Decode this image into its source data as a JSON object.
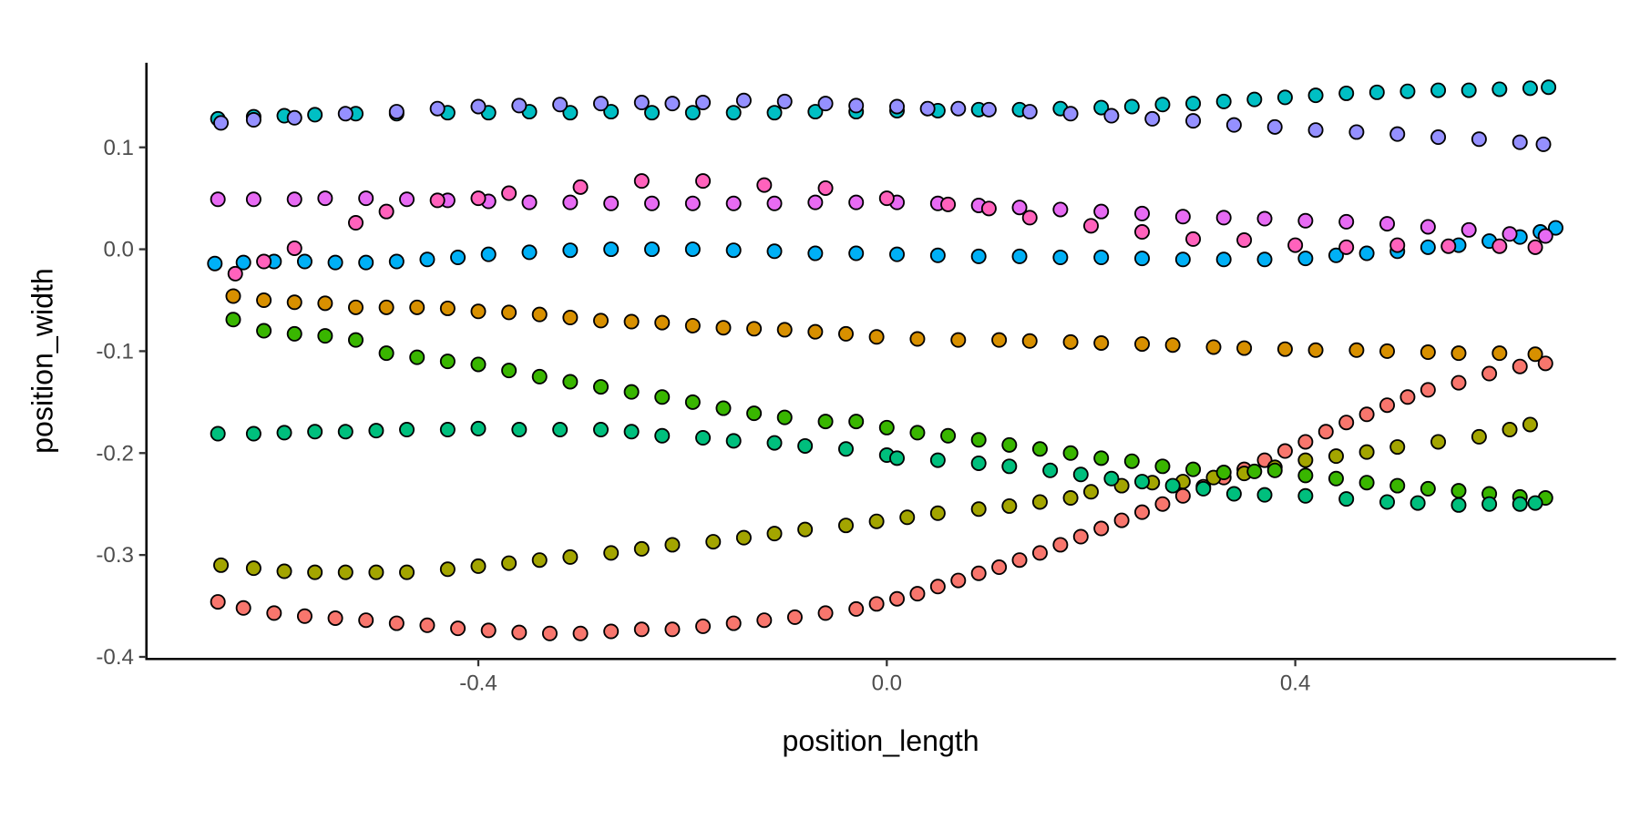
{
  "chart_data": {
    "type": "scatter",
    "title": "",
    "xlabel": "position_length",
    "ylabel": "position_width",
    "xlim": [
      -0.725,
      0.714
    ],
    "ylim": [
      -0.402,
      0.183
    ],
    "xticks": [
      -0.4,
      0.0,
      0.4
    ],
    "xtick_labels": [
      "-0.4",
      "0.0",
      "0.4"
    ],
    "yticks": [
      0.1,
      0.0,
      -0.1,
      -0.2,
      -0.3,
      -0.4
    ],
    "ytick_labels": [
      "0.1",
      "0.0",
      "-0.1",
      "-0.2",
      "-0.3",
      "-0.4"
    ],
    "grid": false,
    "legend": "none",
    "series": [
      {
        "color": "#F8766D",
        "x": [
          -0.655,
          -0.63,
          -0.6,
          -0.57,
          -0.54,
          -0.51,
          -0.48,
          -0.45,
          -0.42,
          -0.39,
          -0.36,
          -0.33,
          -0.3,
          -0.27,
          -0.24,
          -0.21,
          -0.18,
          -0.15,
          -0.12,
          -0.09,
          -0.06,
          -0.03,
          -0.01,
          0.01,
          0.03,
          0.05,
          0.07,
          0.09,
          0.11,
          0.13,
          0.15,
          0.17,
          0.19,
          0.21,
          0.23,
          0.25,
          0.27,
          0.29,
          0.31,
          0.33,
          0.35,
          0.37,
          0.39,
          0.41,
          0.43,
          0.45,
          0.47,
          0.49,
          0.51,
          0.53,
          0.56,
          0.59,
          0.62,
          0.645
        ],
        "y": [
          -0.346,
          -0.352,
          -0.357,
          -0.36,
          -0.362,
          -0.364,
          -0.367,
          -0.369,
          -0.372,
          -0.374,
          -0.376,
          -0.377,
          -0.377,
          -0.375,
          -0.373,
          -0.373,
          -0.37,
          -0.367,
          -0.364,
          -0.361,
          -0.357,
          -0.353,
          -0.348,
          -0.343,
          -0.338,
          -0.331,
          -0.325,
          -0.318,
          -0.312,
          -0.305,
          -0.298,
          -0.29,
          -0.282,
          -0.274,
          -0.266,
          -0.258,
          -0.25,
          -0.242,
          -0.233,
          -0.224,
          -0.216,
          -0.207,
          -0.198,
          -0.189,
          -0.179,
          -0.17,
          -0.162,
          -0.153,
          -0.145,
          -0.138,
          -0.131,
          -0.122,
          -0.115,
          -0.112
        ]
      },
      {
        "color": "#D89000",
        "x": [
          -0.64,
          -0.61,
          -0.58,
          -0.55,
          -0.52,
          -0.49,
          -0.46,
          -0.43,
          -0.4,
          -0.37,
          -0.34,
          -0.31,
          -0.28,
          -0.25,
          -0.22,
          -0.19,
          -0.16,
          -0.13,
          -0.1,
          -0.07,
          -0.04,
          -0.01,
          0.03,
          0.07,
          0.11,
          0.14,
          0.18,
          0.21,
          0.25,
          0.28,
          0.32,
          0.35,
          0.39,
          0.42,
          0.46,
          0.49,
          0.53,
          0.56,
          0.6,
          0.635
        ],
        "y": [
          -0.046,
          -0.05,
          -0.052,
          -0.053,
          -0.057,
          -0.057,
          -0.057,
          -0.058,
          -0.061,
          -0.062,
          -0.064,
          -0.067,
          -0.07,
          -0.071,
          -0.072,
          -0.075,
          -0.077,
          -0.078,
          -0.079,
          -0.081,
          -0.083,
          -0.086,
          -0.088,
          -0.089,
          -0.089,
          -0.09,
          -0.091,
          -0.092,
          -0.093,
          -0.094,
          -0.096,
          -0.097,
          -0.098,
          -0.099,
          -0.099,
          -0.1,
          -0.101,
          -0.102,
          -0.102,
          -0.103
        ]
      },
      {
        "color": "#A3A500",
        "x": [
          -0.652,
          -0.62,
          -0.59,
          -0.56,
          -0.53,
          -0.5,
          -0.47,
          -0.43,
          -0.4,
          -0.37,
          -0.34,
          -0.31,
          -0.27,
          -0.24,
          -0.21,
          -0.17,
          -0.14,
          -0.11,
          -0.08,
          -0.04,
          -0.01,
          0.02,
          0.05,
          0.09,
          0.12,
          0.15,
          0.18,
          0.2,
          0.23,
          0.26,
          0.29,
          0.32,
          0.35,
          0.38,
          0.41,
          0.44,
          0.47,
          0.5,
          0.54,
          0.58,
          0.61,
          0.63
        ],
        "y": [
          -0.31,
          -0.313,
          -0.316,
          -0.317,
          -0.317,
          -0.317,
          -0.317,
          -0.314,
          -0.311,
          -0.308,
          -0.305,
          -0.302,
          -0.298,
          -0.294,
          -0.29,
          -0.287,
          -0.283,
          -0.279,
          -0.275,
          -0.271,
          -0.267,
          -0.263,
          -0.259,
          -0.255,
          -0.252,
          -0.248,
          -0.244,
          -0.238,
          -0.232,
          -0.229,
          -0.228,
          -0.224,
          -0.22,
          -0.214,
          -0.207,
          -0.203,
          -0.199,
          -0.194,
          -0.189,
          -0.184,
          -0.177,
          -0.172
        ]
      },
      {
        "color": "#39B600",
        "x": [
          -0.64,
          -0.61,
          -0.58,
          -0.55,
          -0.52,
          -0.49,
          -0.46,
          -0.43,
          -0.4,
          -0.37,
          -0.34,
          -0.31,
          -0.28,
          -0.25,
          -0.22,
          -0.19,
          -0.16,
          -0.13,
          -0.1,
          -0.06,
          -0.03,
          0.0,
          0.03,
          0.06,
          0.09,
          0.12,
          0.15,
          0.18,
          0.21,
          0.24,
          0.27,
          0.3,
          0.33,
          0.36,
          0.38,
          0.41,
          0.44,
          0.47,
          0.5,
          0.53,
          0.56,
          0.59,
          0.62,
          0.645
        ],
        "y": [
          -0.069,
          -0.08,
          -0.083,
          -0.085,
          -0.089,
          -0.102,
          -0.106,
          -0.11,
          -0.113,
          -0.119,
          -0.125,
          -0.13,
          -0.135,
          -0.14,
          -0.145,
          -0.15,
          -0.156,
          -0.161,
          -0.165,
          -0.169,
          -0.169,
          -0.175,
          -0.18,
          -0.183,
          -0.187,
          -0.192,
          -0.196,
          -0.2,
          -0.205,
          -0.208,
          -0.213,
          -0.216,
          -0.219,
          -0.218,
          -0.217,
          -0.222,
          -0.225,
          -0.229,
          -0.232,
          -0.235,
          -0.237,
          -0.24,
          -0.243,
          -0.244
        ]
      },
      {
        "color": "#00BF7D",
        "x": [
          -0.655,
          -0.62,
          -0.59,
          -0.56,
          -0.53,
          -0.5,
          -0.47,
          -0.43,
          -0.4,
          -0.36,
          -0.32,
          -0.28,
          -0.25,
          -0.22,
          -0.18,
          -0.15,
          -0.11,
          -0.08,
          -0.04,
          -0.0,
          0.01,
          0.05,
          0.09,
          0.12,
          0.16,
          0.19,
          0.22,
          0.25,
          0.28,
          0.31,
          0.34,
          0.37,
          0.41,
          0.45,
          0.49,
          0.52,
          0.56,
          0.59,
          0.62,
          0.635
        ],
        "y": [
          -0.181,
          -0.181,
          -0.18,
          -0.179,
          -0.179,
          -0.178,
          -0.177,
          -0.177,
          -0.176,
          -0.177,
          -0.177,
          -0.177,
          -0.179,
          -0.183,
          -0.185,
          -0.188,
          -0.19,
          -0.193,
          -0.196,
          -0.202,
          -0.205,
          -0.207,
          -0.21,
          -0.213,
          -0.217,
          -0.221,
          -0.225,
          -0.228,
          -0.232,
          -0.235,
          -0.24,
          -0.241,
          -0.242,
          -0.245,
          -0.248,
          -0.249,
          -0.251,
          -0.25,
          -0.25,
          -0.249
        ]
      },
      {
        "color": "#00BFC4",
        "x": [
          -0.655,
          -0.62,
          -0.59,
          -0.56,
          -0.52,
          -0.48,
          -0.43,
          -0.39,
          -0.35,
          -0.31,
          -0.27,
          -0.23,
          -0.19,
          -0.15,
          -0.11,
          -0.07,
          -0.03,
          0.01,
          0.05,
          0.09,
          0.13,
          0.17,
          0.21,
          0.24,
          0.27,
          0.3,
          0.33,
          0.36,
          0.39,
          0.42,
          0.45,
          0.48,
          0.51,
          0.54,
          0.57,
          0.6,
          0.63,
          0.648
        ],
        "y": [
          0.128,
          0.13,
          0.131,
          0.132,
          0.133,
          0.133,
          0.134,
          0.134,
          0.135,
          0.134,
          0.135,
          0.134,
          0.134,
          0.134,
          0.134,
          0.135,
          0.135,
          0.136,
          0.136,
          0.137,
          0.137,
          0.138,
          0.139,
          0.14,
          0.142,
          0.143,
          0.145,
          0.147,
          0.149,
          0.151,
          0.153,
          0.154,
          0.155,
          0.156,
          0.156,
          0.157,
          0.158,
          0.159
        ]
      },
      {
        "color": "#00B0F6",
        "x": [
          -0.658,
          -0.63,
          -0.6,
          -0.57,
          -0.54,
          -0.51,
          -0.48,
          -0.45,
          -0.42,
          -0.39,
          -0.35,
          -0.31,
          -0.27,
          -0.23,
          -0.19,
          -0.15,
          -0.11,
          -0.07,
          -0.03,
          0.01,
          0.05,
          0.09,
          0.13,
          0.17,
          0.21,
          0.25,
          0.29,
          0.33,
          0.37,
          0.41,
          0.44,
          0.47,
          0.5,
          0.53,
          0.56,
          0.59,
          0.62,
          0.64,
          0.655
        ],
        "y": [
          -0.014,
          -0.013,
          -0.012,
          -0.012,
          -0.013,
          -0.013,
          -0.012,
          -0.01,
          -0.008,
          -0.005,
          -0.003,
          -0.001,
          0.0,
          0.0,
          0.0,
          -0.001,
          -0.002,
          -0.004,
          -0.004,
          -0.005,
          -0.006,
          -0.007,
          -0.007,
          -0.008,
          -0.008,
          -0.009,
          -0.01,
          -0.01,
          -0.01,
          -0.009,
          -0.006,
          -0.004,
          -0.002,
          0.002,
          0.004,
          0.008,
          0.012,
          0.017,
          0.021
        ]
      },
      {
        "color": "#9590FF",
        "x": [
          -0.652,
          -0.62,
          -0.58,
          -0.53,
          -0.48,
          -0.44,
          -0.4,
          -0.36,
          -0.32,
          -0.28,
          -0.24,
          -0.21,
          -0.18,
          -0.14,
          -0.1,
          -0.06,
          -0.03,
          0.01,
          0.04,
          0.07,
          0.1,
          0.14,
          0.18,
          0.22,
          0.26,
          0.3,
          0.34,
          0.38,
          0.42,
          0.46,
          0.5,
          0.54,
          0.58,
          0.62,
          0.643
        ],
        "y": [
          0.124,
          0.127,
          0.129,
          0.133,
          0.135,
          0.138,
          0.14,
          0.141,
          0.142,
          0.143,
          0.144,
          0.143,
          0.144,
          0.146,
          0.145,
          0.143,
          0.141,
          0.14,
          0.138,
          0.138,
          0.137,
          0.135,
          0.133,
          0.131,
          0.128,
          0.126,
          0.122,
          0.12,
          0.117,
          0.115,
          0.113,
          0.11,
          0.108,
          0.105,
          0.103
        ]
      },
      {
        "color": "#E76BF3",
        "x": [
          -0.655,
          -0.62,
          -0.58,
          -0.55,
          -0.51,
          -0.47,
          -0.43,
          -0.39,
          -0.35,
          -0.31,
          -0.27,
          -0.23,
          -0.19,
          -0.15,
          -0.11,
          -0.07,
          -0.03,
          0.01,
          0.05,
          0.09,
          0.13,
          0.17,
          0.21,
          0.25,
          0.29,
          0.33,
          0.37,
          0.41,
          0.45,
          0.49,
          0.53,
          0.57,
          0.61,
          0.645
        ],
        "y": [
          0.049,
          0.049,
          0.049,
          0.05,
          0.05,
          0.049,
          0.048,
          0.047,
          0.046,
          0.046,
          0.045,
          0.045,
          0.045,
          0.045,
          0.045,
          0.046,
          0.046,
          0.046,
          0.045,
          0.043,
          0.041,
          0.039,
          0.037,
          0.035,
          0.032,
          0.031,
          0.03,
          0.028,
          0.027,
          0.025,
          0.022,
          0.019,
          0.015,
          0.013
        ]
      },
      {
        "color": "#FF62BC",
        "x": [
          -0.638,
          -0.61,
          -0.58,
          -0.52,
          -0.49,
          -0.44,
          -0.4,
          -0.37,
          -0.3,
          -0.24,
          -0.18,
          -0.12,
          -0.06,
          0.0,
          0.06,
          0.1,
          0.14,
          0.2,
          0.25,
          0.3,
          0.35,
          0.4,
          0.45,
          0.5,
          0.55,
          0.6,
          0.635
        ],
        "y": [
          -0.024,
          -0.012,
          0.001,
          0.026,
          0.037,
          0.048,
          0.05,
          0.055,
          0.061,
          0.067,
          0.067,
          0.063,
          0.06,
          0.05,
          0.044,
          0.04,
          0.031,
          0.023,
          0.017,
          0.01,
          0.009,
          0.004,
          0.002,
          0.004,
          0.003,
          0.003,
          0.002
        ]
      }
    ]
  }
}
